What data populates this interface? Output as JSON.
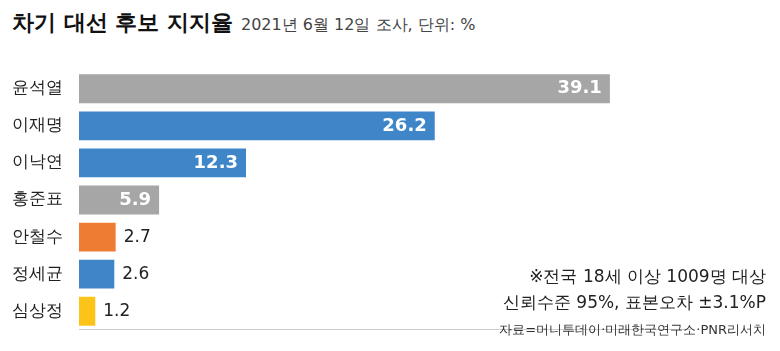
{
  "chart_data": {
    "type": "bar",
    "orientation": "horizontal",
    "title": "차기 대선 후보 지지율",
    "subtitle": "2021년 6월 12일 조사, 단위: %",
    "categories": [
      "윤석열",
      "이재명",
      "이낙연",
      "홍준표",
      "안철수",
      "정세균",
      "심상정"
    ],
    "values": [
      39.1,
      26.2,
      12.3,
      5.9,
      2.7,
      2.6,
      1.2
    ],
    "colors": [
      "#a6a6a6",
      "#3f86c9",
      "#3f86c9",
      "#a6a6a6",
      "#ee7d33",
      "#3f86c9",
      "#fcc419"
    ],
    "xlim": [
      0,
      45
    ],
    "grid": false,
    "data_labels": true,
    "tick_labels": "y",
    "annotations": [
      "※전국 18세 이상 1009명 대상",
      "신뢰수준 95%, 표본오차 ±3.1%P",
      "자료=머니투데이·미래한국연구소·PNR리서치"
    ]
  }
}
